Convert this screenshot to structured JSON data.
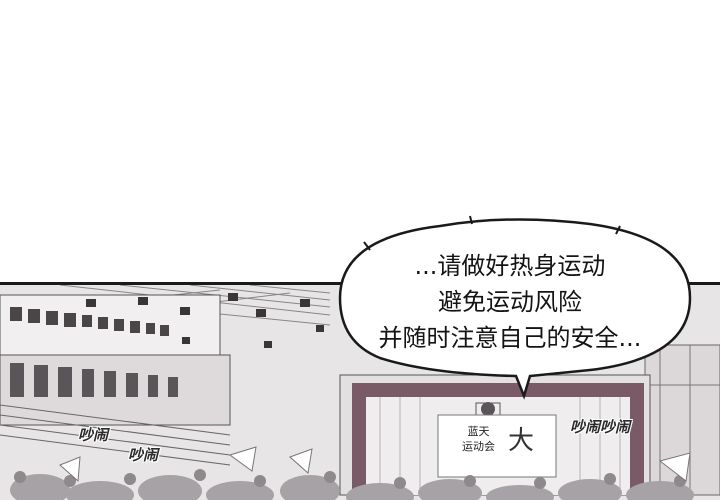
{
  "speech_bubble": {
    "lines": [
      "...请做好热身运动",
      "避免运动风险",
      "并随时注意自己的安全..."
    ]
  },
  "sound_effects": [
    "吵闹",
    "吵闹",
    "吵闹吵闹"
  ],
  "banner": {
    "line1": "蓝天",
    "line2": "运动会"
  },
  "colors": {
    "stage_curtain": "#7a5a66",
    "panel_border": "#1a1a1a",
    "wall": "#e6e3e3"
  }
}
